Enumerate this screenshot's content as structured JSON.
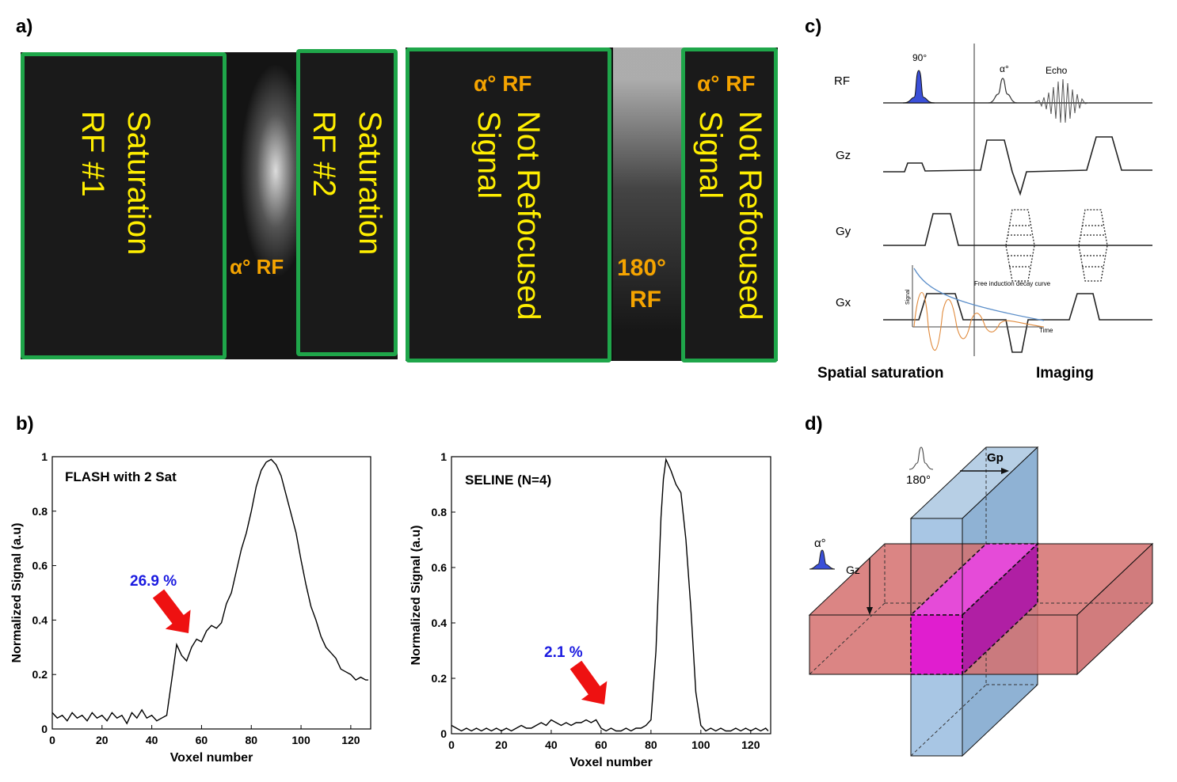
{
  "panels": {
    "a": {
      "label": "a)",
      "boxes": [
        {
          "text": [
            "Saturation",
            "RF #1"
          ]
        },
        {
          "text": [
            "Saturation",
            "RF #2"
          ]
        },
        {
          "text": [
            "Not Refocused",
            "Signal"
          ]
        },
        {
          "text": [
            "Not Refocused",
            "Signal"
          ]
        }
      ],
      "alpha_rf_1": "α° RF",
      "alpha_rf_2": "α° RF",
      "alpha_rf_3": "α° RF",
      "rf180_line1": "180°",
      "rf180_line2": "RF"
    },
    "b": {
      "label": "b)"
    },
    "c": {
      "label": "c)",
      "rows": [
        "RF",
        "Gz",
        "Gy",
        "Gx"
      ],
      "pulse_90": "90°",
      "pulse_alpha": "α°",
      "echo": "Echo",
      "fid_label": "Free induction decay curve",
      "signal_axis": "Signal",
      "time_axis": "Time",
      "footer_left": "Spatial saturation",
      "footer_right": "Imaging"
    },
    "d": {
      "label": "d)",
      "alpha": "α°",
      "gz": "Gz",
      "gp": "Gp",
      "rf180": "180°"
    }
  },
  "chart_data": [
    {
      "type": "line",
      "title": "FLASH with 2 Sat",
      "xlabel": "Voxel number",
      "ylabel": "Normalized Signal (a.u)",
      "xlim": [
        0,
        128
      ],
      "ylim": [
        0,
        1
      ],
      "xticks": [
        0,
        20,
        40,
        60,
        80,
        100,
        120
      ],
      "yticks": [
        0,
        0.2,
        0.4,
        0.6,
        0.8,
        1
      ],
      "annotation": "26.9 %",
      "x": [
        0,
        2,
        4,
        6,
        8,
        10,
        12,
        14,
        16,
        18,
        20,
        22,
        24,
        26,
        28,
        30,
        32,
        34,
        36,
        38,
        40,
        42,
        44,
        46,
        48,
        50,
        52,
        54,
        56,
        58,
        60,
        62,
        64,
        66,
        68,
        70,
        72,
        74,
        76,
        78,
        80,
        82,
        84,
        86,
        88,
        90,
        92,
        94,
        96,
        98,
        100,
        102,
        104,
        106,
        108,
        110,
        112,
        114,
        116,
        118,
        120,
        122,
        124,
        126,
        127
      ],
      "y": [
        0.06,
        0.04,
        0.05,
        0.03,
        0.06,
        0.04,
        0.05,
        0.03,
        0.06,
        0.04,
        0.05,
        0.03,
        0.06,
        0.04,
        0.05,
        0.02,
        0.06,
        0.04,
        0.07,
        0.04,
        0.05,
        0.03,
        0.04,
        0.05,
        0.18,
        0.31,
        0.27,
        0.25,
        0.3,
        0.33,
        0.32,
        0.36,
        0.38,
        0.37,
        0.39,
        0.46,
        0.5,
        0.58,
        0.66,
        0.72,
        0.8,
        0.89,
        0.95,
        0.98,
        0.99,
        0.97,
        0.93,
        0.86,
        0.79,
        0.72,
        0.62,
        0.53,
        0.45,
        0.4,
        0.34,
        0.3,
        0.28,
        0.26,
        0.22,
        0.21,
        0.2,
        0.18,
        0.19,
        0.18,
        0.18
      ]
    },
    {
      "type": "line",
      "title": "SELINE (N=4)",
      "xlabel": "Voxel number",
      "ylabel": "Normalized Signal (a.u)",
      "xlim": [
        0,
        128
      ],
      "ylim": [
        0,
        1
      ],
      "xticks": [
        0,
        20,
        40,
        60,
        80,
        100,
        120
      ],
      "yticks": [
        0,
        0.2,
        0.4,
        0.6,
        0.8,
        1
      ],
      "annotation": "2.1 %",
      "x": [
        0,
        2,
        4,
        6,
        8,
        10,
        12,
        14,
        16,
        18,
        20,
        22,
        24,
        26,
        28,
        30,
        32,
        34,
        36,
        38,
        40,
        42,
        44,
        46,
        48,
        50,
        52,
        54,
        56,
        58,
        60,
        62,
        64,
        66,
        68,
        70,
        72,
        74,
        76,
        78,
        80,
        82,
        84,
        85,
        86,
        88,
        90,
        92,
        94,
        96,
        98,
        100,
        102,
        104,
        106,
        108,
        110,
        112,
        114,
        116,
        118,
        120,
        122,
        124,
        126,
        127
      ],
      "y": [
        0.03,
        0.02,
        0.01,
        0.02,
        0.01,
        0.02,
        0.01,
        0.02,
        0.01,
        0.02,
        0.01,
        0.02,
        0.01,
        0.02,
        0.03,
        0.02,
        0.02,
        0.03,
        0.04,
        0.03,
        0.05,
        0.04,
        0.03,
        0.04,
        0.03,
        0.04,
        0.04,
        0.05,
        0.04,
        0.05,
        0.02,
        0.01,
        0.02,
        0.01,
        0.01,
        0.02,
        0.01,
        0.02,
        0.02,
        0.03,
        0.05,
        0.3,
        0.78,
        0.92,
        0.99,
        0.95,
        0.9,
        0.87,
        0.7,
        0.45,
        0.15,
        0.03,
        0.01,
        0.02,
        0.01,
        0.02,
        0.01,
        0.01,
        0.02,
        0.01,
        0.02,
        0.01,
        0.02,
        0.01,
        0.02,
        0.01
      ]
    }
  ]
}
